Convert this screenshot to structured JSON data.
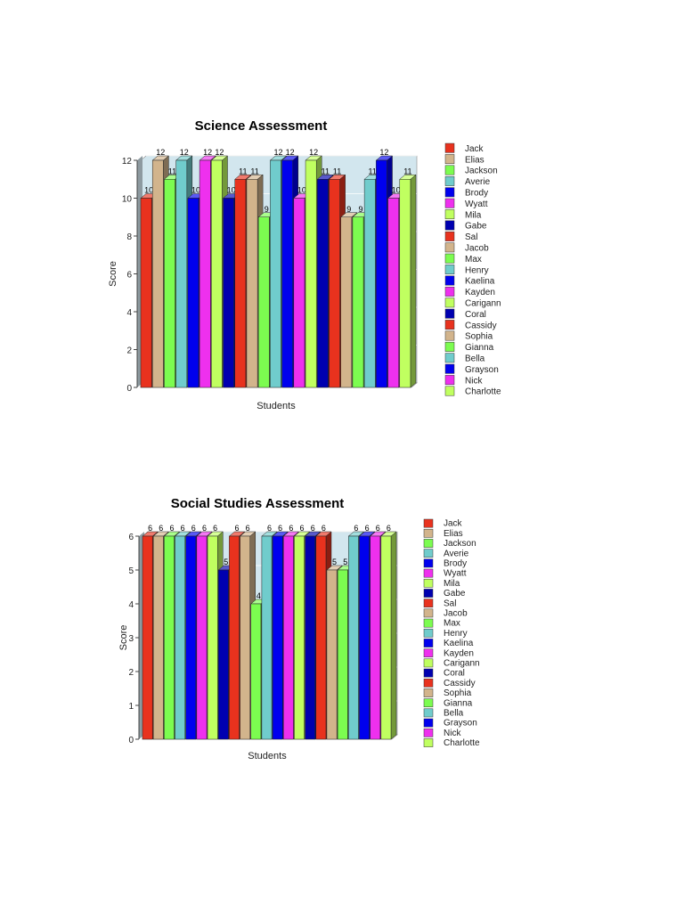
{
  "colors": [
    "#e8321e",
    "#d2b48c",
    "#7cfc50",
    "#70cccc",
    "#0000ee",
    "#ee30ee",
    "#c0ff60",
    "#0000b0"
  ],
  "chart_data": [
    {
      "type": "bar",
      "title": "Science Assessment",
      "xlabel": "Students",
      "ylabel": "Score",
      "ylim": [
        0,
        12
      ],
      "yticks": [
        0,
        2,
        4,
        6,
        8,
        10,
        12
      ],
      "legend": "right",
      "categories": [
        "Jack",
        "Elias",
        "Jackson",
        "Averie",
        "Brody",
        "Wyatt",
        "Mila",
        "Gabe",
        "Sal",
        "Jacob",
        "Max",
        "Henry",
        "Kaelina",
        "Kayden",
        "Carigann",
        "Coral",
        "Cassidy",
        "Sophia",
        "Gianna",
        "Bella",
        "Grayson",
        "Nick",
        "Charlotte"
      ],
      "values": [
        10,
        12,
        11,
        12,
        10,
        12,
        12,
        10,
        11,
        11,
        9,
        12,
        12,
        10,
        12,
        11,
        11,
        9,
        9,
        11,
        12,
        10,
        11
      ]
    },
    {
      "type": "bar",
      "title": "Social Studies Assessment",
      "xlabel": "Students",
      "ylabel": "Score",
      "ylim": [
        0,
        6
      ],
      "yticks": [
        0,
        1,
        2,
        3,
        4,
        5,
        6
      ],
      "legend": "right",
      "categories": [
        "Jack",
        "Elias",
        "Jackson",
        "Averie",
        "Brody",
        "Wyatt",
        "Mila",
        "Gabe",
        "Sal",
        "Jacob",
        "Max",
        "Henry",
        "Kaelina",
        "Kayden",
        "Carigann",
        "Coral",
        "Cassidy",
        "Sophia",
        "Gianna",
        "Bella",
        "Grayson",
        "Nick",
        "Charlotte"
      ],
      "values": [
        6,
        6,
        6,
        6,
        6,
        6,
        6,
        5,
        6,
        6,
        4,
        6,
        6,
        6,
        6,
        6,
        6,
        5,
        5,
        6,
        6,
        6,
        6
      ]
    }
  ]
}
